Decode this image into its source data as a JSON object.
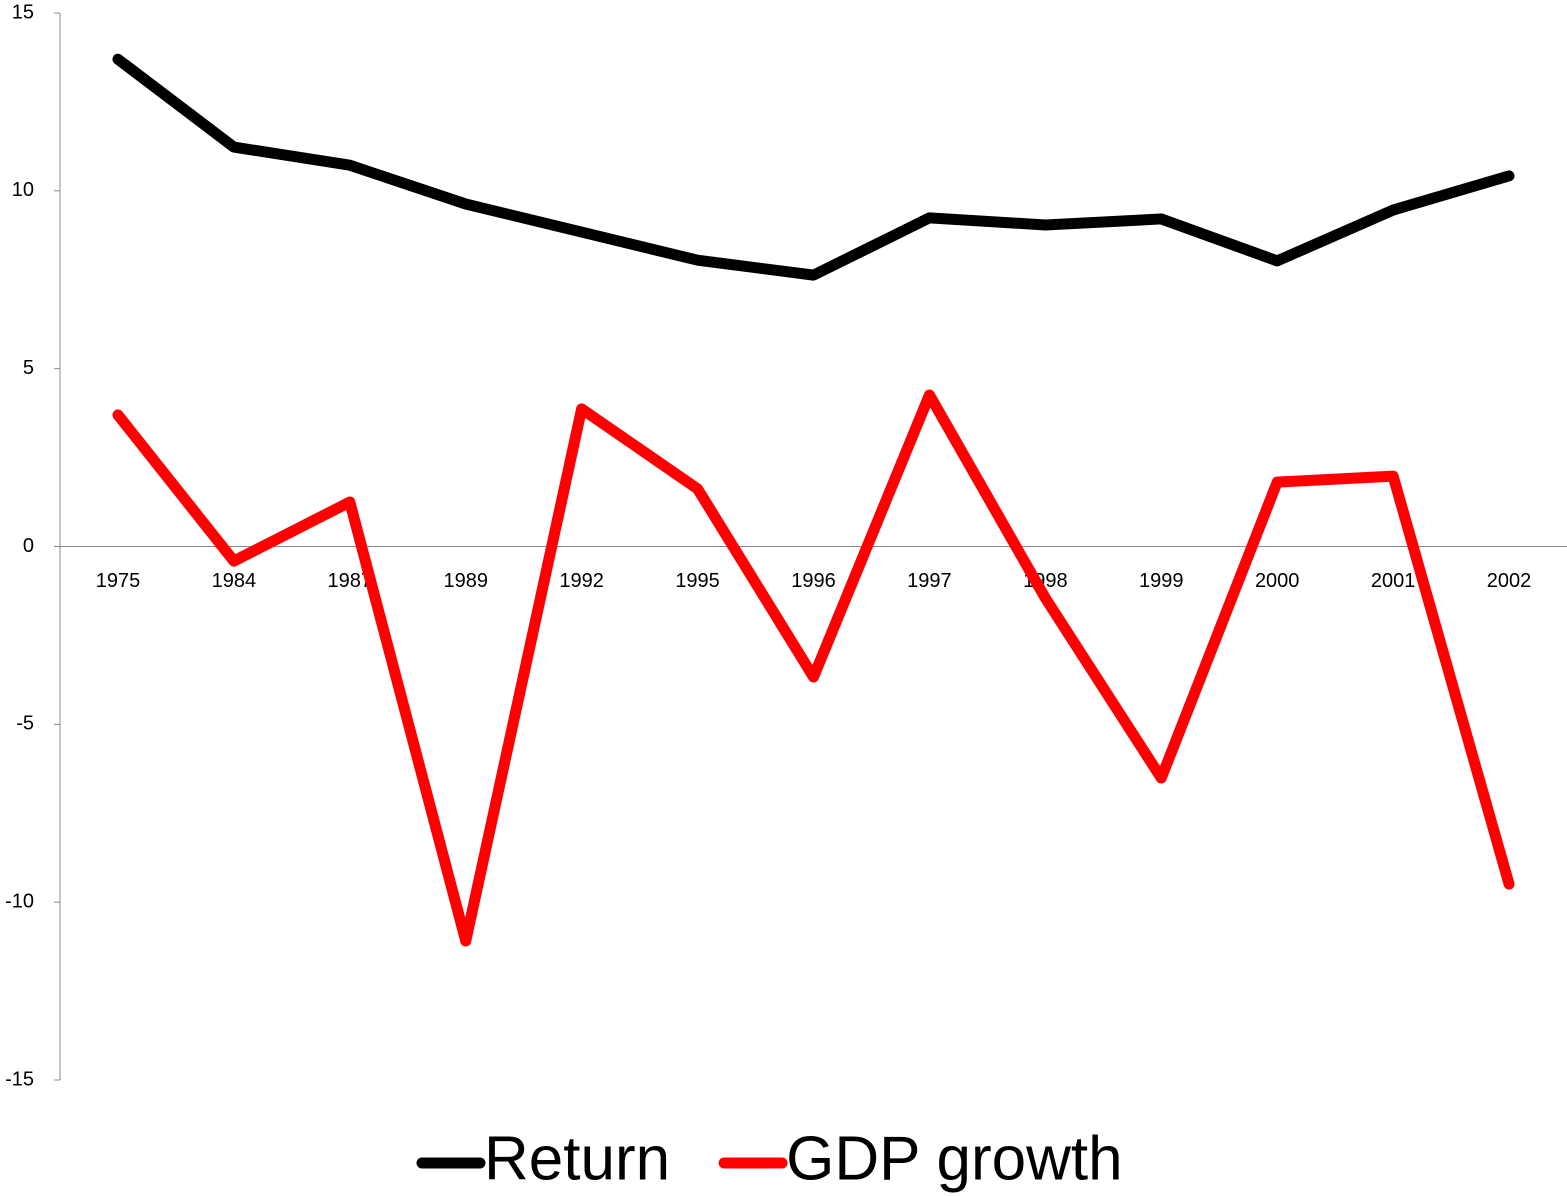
{
  "chart_data": {
    "type": "line",
    "categories": [
      "1975",
      "1984",
      "1987",
      "1989",
      "1992",
      "1995",
      "1996",
      "1997",
      "1998",
      "1999",
      "2000",
      "2001",
      "2002"
    ],
    "series": [
      {
        "name": "Return",
        "color": "#000000",
        "values": [
          13.7,
          11.23,
          10.72,
          9.63,
          8.84,
          8.05,
          7.63,
          9.24,
          9.04,
          9.21,
          8.03,
          9.46,
          10.42
        ]
      },
      {
        "name": "GDP growth",
        "color": "#ff0000",
        "values": [
          3.7,
          -0.41,
          1.25,
          -11.09,
          3.87,
          1.62,
          -3.67,
          4.26,
          -1.45,
          -6.51,
          1.81,
          1.98,
          -9.49
        ]
      }
    ],
    "ylim": [
      -15,
      15
    ],
    "yticks": [
      -15,
      -10,
      -5,
      0,
      5,
      10,
      15
    ],
    "grid": false,
    "legend": "bottom"
  }
}
